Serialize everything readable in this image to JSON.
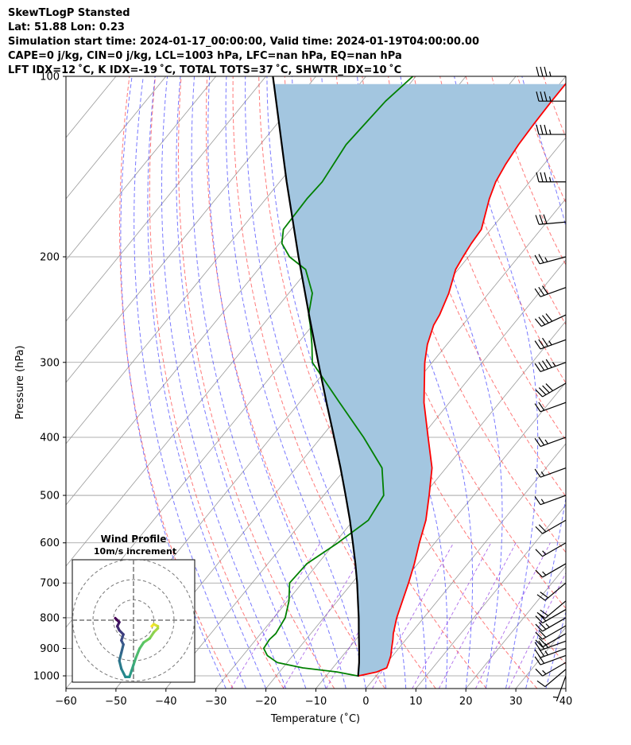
{
  "header": {
    "line1": "SkewTLogP Stansted",
    "line2": "Lat: 51.88   Lon: 0.23",
    "line3": "Simulation start time: 2024-01-17_00:00:00, Valid time: 2024-01-19T04:00:00.00",
    "line4": "CAPE=0 j/kg, CIN=0 j/kg, LCL=1003 hPa, LFC=nan hPa, EQ=nan hPa",
    "line5": "LFT IDX=12 ˚C, K IDX=-19 ˚C, TOTAL TOTS=37 ˚C, SHWTR_IDX=10 ˚C"
  },
  "chart_data": {
    "type": "line",
    "xlabel": "Temperature (˚C)",
    "ylabel": "Pressure (hPa)",
    "xlim": [
      -60,
      40
    ],
    "ylim": [
      1050,
      100
    ],
    "y_scale": "log",
    "grid": true,
    "x_ticks": [
      "−60",
      "−50",
      "−40",
      "−30",
      "−20",
      "−10",
      "0",
      "10",
      "20",
      "30",
      "40"
    ],
    "y_ticks": [
      "1000",
      "900",
      "800",
      "700",
      "600",
      "500",
      "400",
      "300",
      "200",
      "100"
    ],
    "colors": {
      "temperature": "#ff0000",
      "dewpoint": "#008000",
      "parcel": "#000000",
      "cape_fill": "#a3c6e0",
      "dry_adiabat": "#ff4040",
      "moist_adiabat": "#4040ff",
      "mixing_ratio": "#8a2be2",
      "isotherm": "#999999"
    },
    "series": [
      {
        "key": "temperature",
        "pressure": [
          1000,
          985,
          970,
          950,
          925,
          900,
          870,
          850,
          800,
          750,
          700,
          650,
          600,
          550,
          500,
          450,
          400,
          350,
          300,
          280,
          260,
          250,
          230,
          210,
          200,
          190,
          180,
          160,
          150,
          140,
          130,
          120,
          110,
          100
        ],
        "values": [
          -3.5,
          -0.5,
          0.8,
          0.3,
          -0.4,
          -1.4,
          -2.6,
          -3.5,
          -5.4,
          -7.0,
          -8.7,
          -10.7,
          -13.1,
          -15.5,
          -18.9,
          -22.8,
          -28.6,
          -35.1,
          -41.5,
          -43.9,
          -45.8,
          -46.3,
          -48.0,
          -50.5,
          -51.1,
          -51.6,
          -51.9,
          -55.3,
          -56.8,
          -57.7,
          -58.3,
          -58.6,
          -58.8,
          -58.8
        ]
      },
      {
        "key": "dewpoint",
        "pressure": [
          1000,
          985,
          970,
          950,
          925,
          900,
          870,
          850,
          800,
          750,
          700,
          650,
          600,
          550,
          500,
          450,
          400,
          350,
          300,
          280,
          260,
          250,
          230,
          210,
          200,
          190,
          180,
          160,
          150,
          130,
          110,
          100
        ],
        "values": [
          -3.8,
          -8.5,
          -16.0,
          -22.0,
          -25.1,
          -27.0,
          -27.3,
          -27.0,
          -27.7,
          -29.7,
          -32.5,
          -32.2,
          -29.4,
          -27.0,
          -28.0,
          -32.8,
          -41.5,
          -52.0,
          -64.0,
          -67.0,
          -70.5,
          -72.5,
          -75.3,
          -80.5,
          -85.8,
          -89.5,
          -91.5,
          -91.8,
          -91.5,
          -92.8,
          -92.0,
          -90.6
        ]
      },
      {
        "key": "parcel",
        "pressure": [
          1003,
          950,
          900,
          850,
          800,
          750,
          700,
          650,
          600,
          550,
          500,
          450,
          400,
          350,
          300,
          250,
          200,
          150,
          100
        ],
        "values": [
          -3.5,
          -5.6,
          -7.9,
          -10.4,
          -13.0,
          -15.9,
          -19.0,
          -22.5,
          -26.4,
          -30.7,
          -35.6,
          -41.1,
          -47.4,
          -54.6,
          -62.8,
          -72.4,
          -84.0,
          -98.6,
          -118.6
        ]
      }
    ],
    "wind_barbs": {
      "pressure": [
        1000,
        975,
        950,
        925,
        900,
        875,
        850,
        825,
        800,
        775,
        750,
        700,
        650,
        600,
        550,
        500,
        450,
        400,
        350,
        325,
        300,
        275,
        250,
        225,
        200,
        175,
        150,
        125,
        110,
        100
      ],
      "speed_kt": [
        5,
        10,
        15,
        20,
        25,
        25,
        20,
        20,
        25,
        20,
        20,
        20,
        15,
        15,
        20,
        15,
        15,
        25,
        20,
        40,
        45,
        35,
        40,
        30,
        25,
        30,
        35,
        35,
        35,
        35
      ],
      "direction_deg": [
        200,
        230,
        240,
        250,
        250,
        250,
        240,
        240,
        240,
        240,
        230,
        230,
        240,
        240,
        240,
        250,
        250,
        250,
        250,
        240,
        250,
        250,
        245,
        250,
        255,
        265,
        270,
        270,
        270,
        270
      ]
    },
    "hodograph": {
      "title": "Wind Profile",
      "subtitle": "10m/s increment",
      "ring_step": 10,
      "rings": 3,
      "u": [
        9,
        10,
        12,
        12,
        10,
        8,
        5,
        3,
        1,
        0,
        -1,
        -2,
        -4,
        -6,
        -7,
        -6,
        -5,
        -6,
        -5,
        -7,
        -8,
        -7,
        -8,
        -9
      ],
      "v": [
        -3,
        -2,
        -3,
        -4,
        -6,
        -9,
        -11,
        -14,
        -19,
        -22,
        -25,
        -28,
        -28,
        -24,
        -20,
        -16,
        -12,
        -10,
        -7,
        -5,
        -3,
        -1,
        0,
        1
      ],
      "colormap": [
        "#fde725",
        "#5ec962",
        "#21918c",
        "#3b528b",
        "#440154"
      ]
    }
  }
}
